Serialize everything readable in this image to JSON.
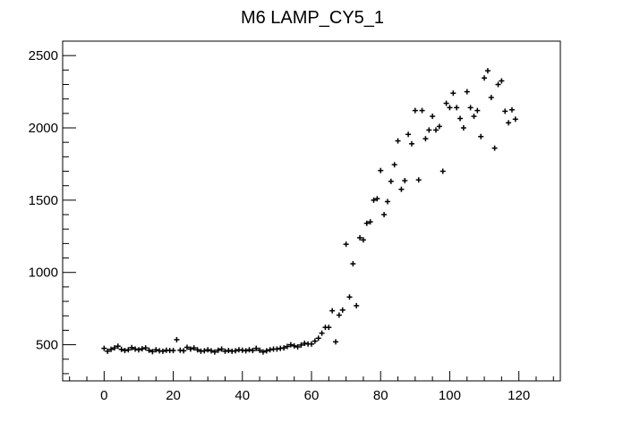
{
  "chart_data": {
    "type": "scatter",
    "title": "M6 LAMP_CY5_1",
    "xlabel": "",
    "ylabel": "",
    "xlim": [
      -12,
      132
    ],
    "ylim": [
      250,
      2600
    ],
    "xticks": [
      "0",
      "20",
      "40",
      "60",
      "80",
      "100",
      "120"
    ],
    "yticks": [
      "500",
      "1000",
      "1500",
      "2000",
      "2500"
    ],
    "grid": false,
    "marker_color": "#000000",
    "series": [
      {
        "values": [
          [
            0,
            475
          ],
          [
            1,
            455
          ],
          [
            2,
            468
          ],
          [
            3,
            478
          ],
          [
            4,
            490
          ],
          [
            5,
            468
          ],
          [
            6,
            460
          ],
          [
            7,
            465
          ],
          [
            8,
            480
          ],
          [
            9,
            470
          ],
          [
            10,
            465
          ],
          [
            11,
            472
          ],
          [
            12,
            478
          ],
          [
            13,
            462
          ],
          [
            14,
            452
          ],
          [
            15,
            465
          ],
          [
            16,
            458
          ],
          [
            17,
            455
          ],
          [
            18,
            462
          ],
          [
            19,
            460
          ],
          [
            20,
            460
          ],
          [
            21,
            535
          ],
          [
            22,
            462
          ],
          [
            23,
            458
          ],
          [
            24,
            482
          ],
          [
            25,
            470
          ],
          [
            26,
            478
          ],
          [
            27,
            465
          ],
          [
            28,
            455
          ],
          [
            29,
            458
          ],
          [
            30,
            465
          ],
          [
            31,
            458
          ],
          [
            32,
            450
          ],
          [
            33,
            462
          ],
          [
            34,
            470
          ],
          [
            35,
            455
          ],
          [
            36,
            460
          ],
          [
            37,
            455
          ],
          [
            38,
            458
          ],
          [
            39,
            465
          ],
          [
            40,
            462
          ],
          [
            41,
            458
          ],
          [
            42,
            465
          ],
          [
            43,
            460
          ],
          [
            44,
            475
          ],
          [
            45,
            462
          ],
          [
            46,
            450
          ],
          [
            47,
            458
          ],
          [
            48,
            465
          ],
          [
            49,
            470
          ],
          [
            50,
            470
          ],
          [
            51,
            475
          ],
          [
            52,
            478
          ],
          [
            53,
            488
          ],
          [
            54,
            500
          ],
          [
            55,
            492
          ],
          [
            56,
            485
          ],
          [
            57,
            498
          ],
          [
            58,
            510
          ],
          [
            59,
            505
          ],
          [
            60,
            505
          ],
          [
            61,
            525
          ],
          [
            62,
            545
          ],
          [
            63,
            580
          ],
          [
            64,
            620
          ],
          [
            65,
            620
          ],
          [
            66,
            735
          ],
          [
            67,
            520
          ],
          [
            68,
            705
          ],
          [
            69,
            740
          ],
          [
            70,
            1195
          ],
          [
            71,
            830
          ],
          [
            72,
            1060
          ],
          [
            73,
            770
          ],
          [
            74,
            1240
          ],
          [
            75,
            1225
          ],
          [
            76,
            1340
          ],
          [
            77,
            1350
          ],
          [
            78,
            1500
          ],
          [
            79,
            1510
          ],
          [
            80,
            1705
          ],
          [
            81,
            1400
          ],
          [
            82,
            1490
          ],
          [
            83,
            1630
          ],
          [
            84,
            1745
          ],
          [
            85,
            1910
          ],
          [
            86,
            1575
          ],
          [
            87,
            1635
          ],
          [
            88,
            1955
          ],
          [
            89,
            1890
          ],
          [
            90,
            2120
          ],
          [
            91,
            1640
          ],
          [
            92,
            2120
          ],
          [
            93,
            1925
          ],
          [
            94,
            1985
          ],
          [
            95,
            2080
          ],
          [
            96,
            1985
          ],
          [
            97,
            2010
          ],
          [
            98,
            1700
          ],
          [
            99,
            2170
          ],
          [
            100,
            2140
          ],
          [
            101,
            2240
          ],
          [
            102,
            2140
          ],
          [
            103,
            2065
          ],
          [
            104,
            2000
          ],
          [
            105,
            2250
          ],
          [
            106,
            2140
          ],
          [
            107,
            2080
          ],
          [
            108,
            2120
          ],
          [
            109,
            1940
          ],
          [
            110,
            2345
          ],
          [
            111,
            2395
          ],
          [
            112,
            2210
          ],
          [
            113,
            1860
          ],
          [
            114,
            2300
          ],
          [
            115,
            2325
          ],
          [
            116,
            2115
          ],
          [
            117,
            2035
          ],
          [
            118,
            2125
          ],
          [
            119,
            2060
          ]
        ]
      }
    ]
  }
}
